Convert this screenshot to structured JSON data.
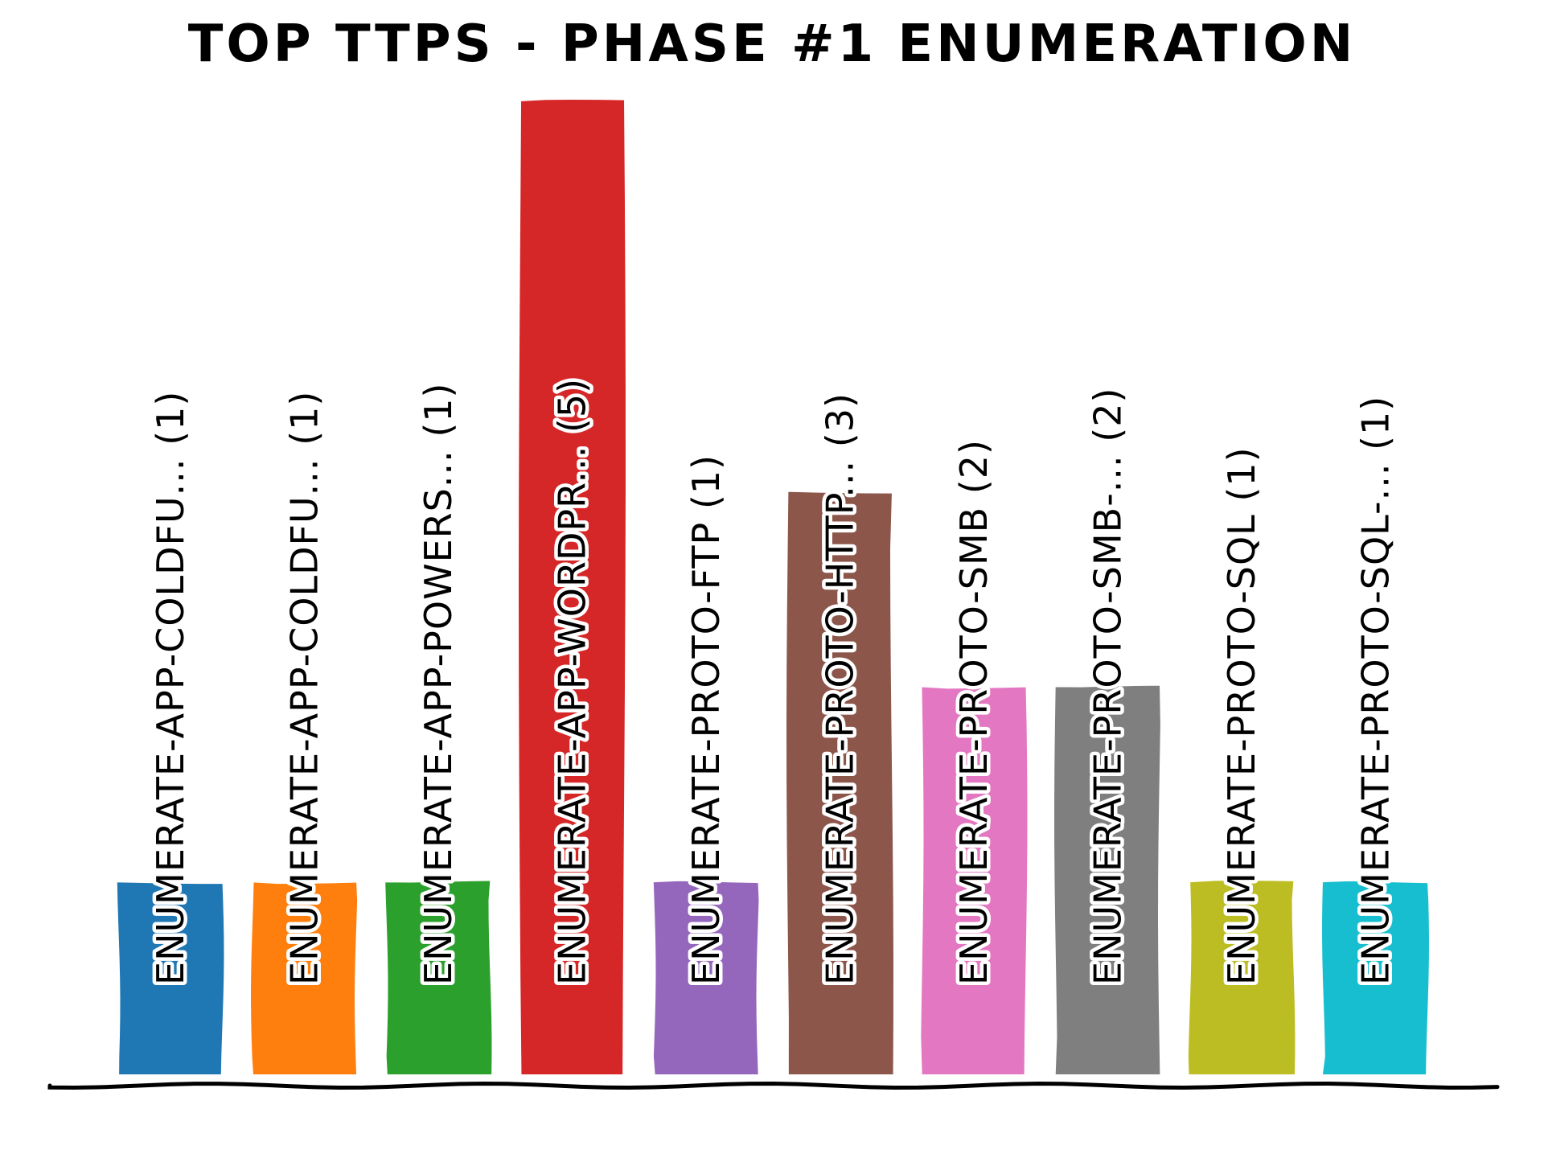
{
  "chart_data": {
    "type": "bar",
    "title": "TOP TTPS - PHASE #1 ENUMERATION",
    "xlabel": "",
    "ylabel": "",
    "ylim": [
      0,
      5
    ],
    "grid": false,
    "categories": [
      "ENUMERATE-APP-COLDFU... (1)",
      "ENUMERATE-APP-COLDFU... (1)",
      "ENUMERATE-APP-POWERS... (1)",
      "ENUMERATE-APP-WORDPR... (5)",
      "ENUMERATE-PROTO-FTP (1)",
      "ENUMERATE-PROTO-HTTP... (3)",
      "ENUMERATE-PROTO-SMB (2)",
      "ENUMERATE-PROTO-SMB-... (2)",
      "ENUMERATE-PROTO-SQL (1)",
      "ENUMERATE-PROTO-SQL-... (1)"
    ],
    "values": [
      1,
      1,
      1,
      5,
      1,
      3,
      2,
      2,
      1,
      1
    ],
    "colors": [
      "#1f77b4",
      "#ff7f0e",
      "#2ca02c",
      "#d62728",
      "#9467bd",
      "#8c564b",
      "#e377c2",
      "#7f7f7f",
      "#bcbd22",
      "#17becf"
    ]
  }
}
